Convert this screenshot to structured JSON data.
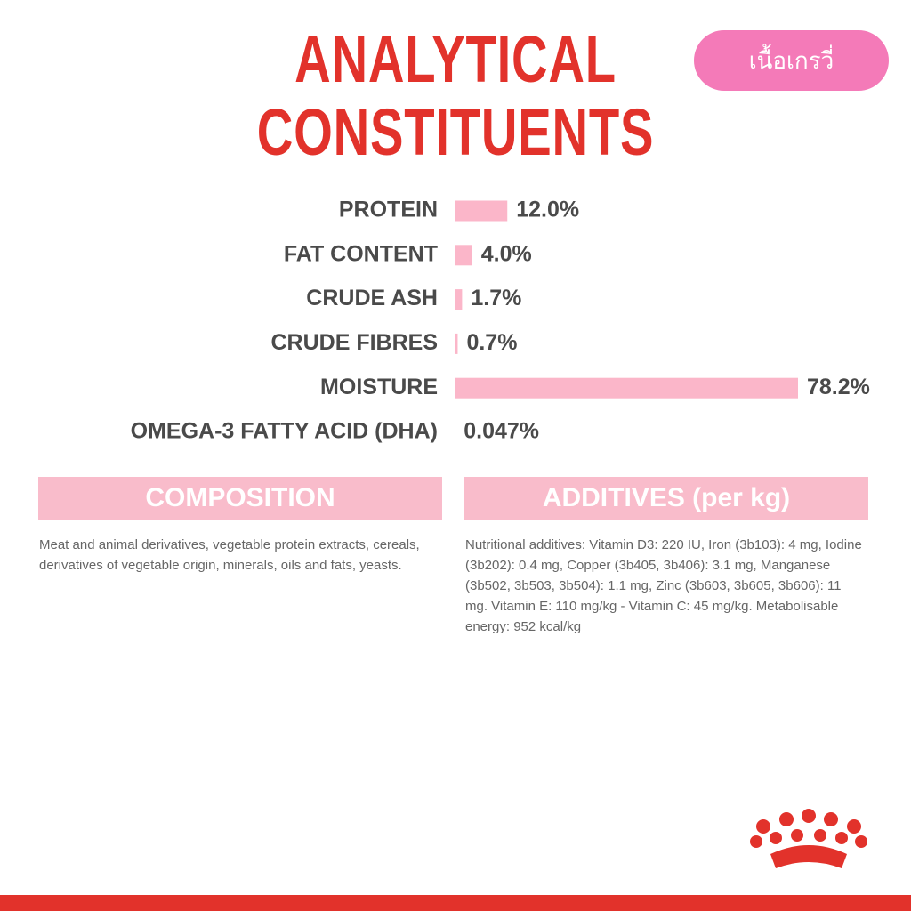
{
  "badge": "เนื้อเกรวี่",
  "chart_data": {
    "type": "hbar",
    "title": "ANALYTICAL CONSTITUENTS",
    "categories": [
      "PROTEIN",
      "FAT CONTENT",
      "CRUDE ASH",
      "CRUDE FIBRES",
      "MOISTURE",
      "OMEGA-3 FATTY ACID (DHA)"
    ],
    "values": [
      12.0,
      4.0,
      1.7,
      0.7,
      78.2,
      0.047
    ],
    "value_labels": [
      "12.0%",
      "4.0%",
      "1.7%",
      "0.7%",
      "78.2%",
      "0.047%"
    ],
    "color": "#fbb6c9"
  },
  "composition": {
    "heading": "COMPOSITION",
    "text": "Meat and animal derivatives, vegetable protein extracts, cereals, derivatives of vegetable origin, minerals, oils and fats, yeasts."
  },
  "additives": {
    "heading": "ADDITIVES (per kg)",
    "text": "Nutritional additives: Vitamin D3: 220 IU, Iron (3b103): 4 mg, Iodine (3b202): 0.4 mg, Copper (3b405, 3b406): 3.1 mg, Manganese (3b502, 3b503, 3b504): 1.1 mg, Zinc (3b603, 3b605, 3b606): 11 mg. Vitamin E: 110 mg/kg - Vitamin C: 45 mg/kg. Metabolisable energy: 952 kcal/kg"
  }
}
